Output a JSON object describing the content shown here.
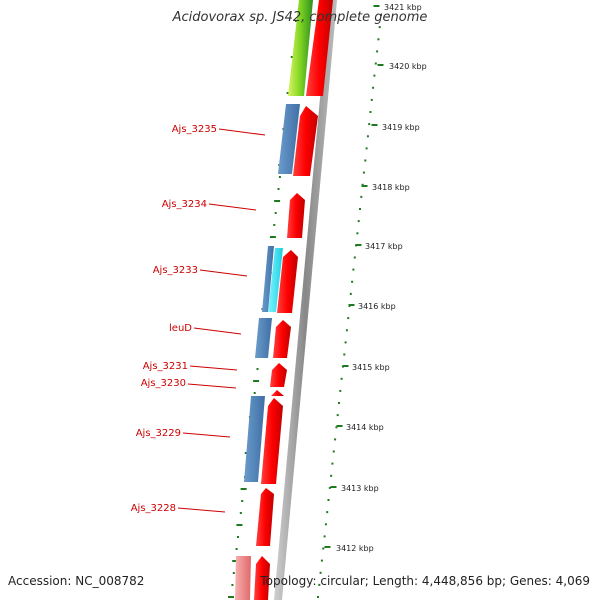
{
  "title": "Acidovorax sp. JS42, complete genome",
  "footer": {
    "accession": "Accession: NC_008782",
    "summary": "Topology: circular; Length: 4,448,856 bp; Genes: 4,069"
  },
  "ruler": {
    "ticks": [
      "3421 kbp",
      "3420 kbp",
      "3419 kbp",
      "3418 kbp",
      "3417 kbp",
      "3416 kbp",
      "3415 kbp",
      "3414 kbp",
      "3413 kbp",
      "3412 kbp"
    ]
  },
  "genes": [
    {
      "label": "Ajs_3235"
    },
    {
      "label": "Ajs_3234"
    },
    {
      "label": "Ajs_3233"
    },
    {
      "label": "leuD"
    },
    {
      "label": "Ajs_3231"
    },
    {
      "label": "Ajs_3230"
    },
    {
      "label": "Ajs_3229"
    },
    {
      "label": "Ajs_3228"
    }
  ],
  "colors": {
    "forward_cds": "#ff0000",
    "blue_feature": "#4a7fb5",
    "cyan_feature": "#33e0f0",
    "green_feature": "#7ed321",
    "pink_feature": "#f08080",
    "ruler": "#1f7a1f",
    "label": "#cc0000",
    "backbone": "#999999"
  }
}
